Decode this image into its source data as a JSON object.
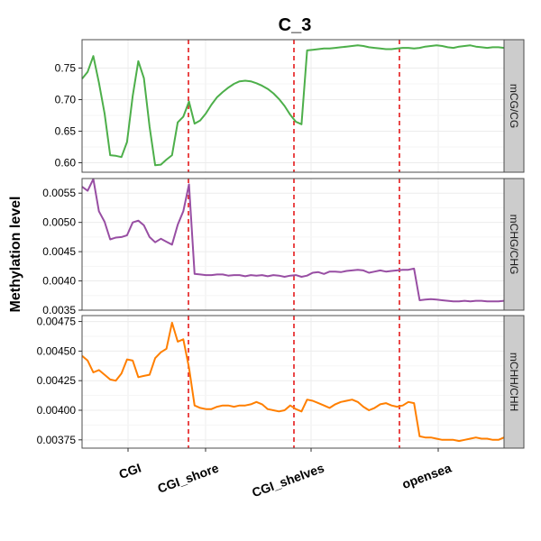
{
  "chart_data": {
    "type": "line",
    "title": "C_3",
    "ylabel": "Methylation level",
    "xlabel": "",
    "categories": [
      "CGI",
      "CGI_shore",
      "CGI_shelves",
      "opensea"
    ],
    "grid": true,
    "colors": {
      "panel_border": "#4d4d4d",
      "strip_fill": "#cccccc",
      "grid": "#ececec",
      "divider": "#e41a1c"
    },
    "panels": [
      {
        "strip": "mCG/CG",
        "color": "#4daf4a",
        "ylim": [
          0.585,
          0.795
        ],
        "yticks": [
          0.6,
          0.65,
          0.7,
          0.75
        ],
        "ytick_labels": [
          "0.60",
          "0.65",
          "0.70",
          "0.75"
        ],
        "values": [
          0.733,
          0.744,
          0.769,
          0.727,
          0.678,
          0.612,
          0.611,
          0.609,
          0.633,
          0.706,
          0.761,
          0.734,
          0.657,
          0.596,
          0.597,
          0.605,
          0.612,
          0.664,
          0.673,
          0.697,
          0.662,
          0.667,
          0.678,
          0.692,
          0.704,
          0.712,
          0.719,
          0.725,
          0.729,
          0.73,
          0.729,
          0.726,
          0.722,
          0.717,
          0.71,
          0.701,
          0.69,
          0.676,
          0.665,
          0.661,
          0.778,
          0.779,
          0.78,
          0.781,
          0.781,
          0.782,
          0.783,
          0.784,
          0.785,
          0.786,
          0.785,
          0.783,
          0.782,
          0.781,
          0.78,
          0.78,
          0.781,
          0.782,
          0.782,
          0.781,
          0.782,
          0.784,
          0.785,
          0.786,
          0.785,
          0.783,
          0.782,
          0.784,
          0.785,
          0.786,
          0.784,
          0.783,
          0.782,
          0.783,
          0.783,
          0.782
        ]
      },
      {
        "strip": "mCHG/CHG",
        "color": "#984ea3",
        "ylim": [
          0.0035,
          0.00575
        ],
        "yticks": [
          0.0035,
          0.004,
          0.0045,
          0.005,
          0.0055
        ],
        "ytick_labels": [
          "0.0035",
          "0.0040",
          "0.0045",
          "0.0050",
          "0.0055"
        ],
        "values": [
          0.00561,
          0.00554,
          0.00574,
          0.00519,
          0.00501,
          0.00471,
          0.00474,
          0.00475,
          0.00478,
          0.005,
          0.00503,
          0.00495,
          0.00475,
          0.00466,
          0.00472,
          0.00467,
          0.00462,
          0.00496,
          0.00519,
          0.00565,
          0.00412,
          0.00411,
          0.0041,
          0.0041,
          0.00411,
          0.00411,
          0.00409,
          0.0041,
          0.0041,
          0.00408,
          0.0041,
          0.00409,
          0.0041,
          0.00408,
          0.0041,
          0.00409,
          0.00407,
          0.00409,
          0.0041,
          0.00407,
          0.00409,
          0.00414,
          0.00415,
          0.00412,
          0.00416,
          0.00416,
          0.00415,
          0.00417,
          0.00418,
          0.00419,
          0.00418,
          0.00414,
          0.00416,
          0.00418,
          0.00416,
          0.00417,
          0.00418,
          0.00419,
          0.00419,
          0.00421,
          0.00367,
          0.00368,
          0.00369,
          0.00368,
          0.00367,
          0.00366,
          0.00365,
          0.00365,
          0.00366,
          0.00365,
          0.00366,
          0.00366,
          0.00365,
          0.00365,
          0.00365,
          0.00366
        ]
      },
      {
        "strip": "mCHH/CHH",
        "color": "#ff7f00",
        "ylim": [
          0.00368,
          0.0048
        ],
        "yticks": [
          0.00375,
          0.004,
          0.00425,
          0.0045,
          0.00475
        ],
        "ytick_labels": [
          "0.00375",
          "0.00400",
          "0.00425",
          "0.00450",
          "0.00475"
        ],
        "values": [
          0.00446,
          0.00442,
          0.00432,
          0.00434,
          0.0043,
          0.00426,
          0.00425,
          0.00431,
          0.00443,
          0.00442,
          0.00428,
          0.00429,
          0.0043,
          0.00444,
          0.00449,
          0.00452,
          0.00474,
          0.00458,
          0.0046,
          0.00436,
          0.00404,
          0.00402,
          0.00401,
          0.00401,
          0.00403,
          0.00404,
          0.00404,
          0.00403,
          0.00404,
          0.00404,
          0.00405,
          0.00407,
          0.00405,
          0.00401,
          0.004,
          0.00399,
          0.004,
          0.00404,
          0.00401,
          0.00399,
          0.00409,
          0.00408,
          0.00406,
          0.00404,
          0.00402,
          0.00405,
          0.00407,
          0.00408,
          0.00409,
          0.00407,
          0.00403,
          0.004,
          0.00402,
          0.00405,
          0.00406,
          0.00404,
          0.00403,
          0.00404,
          0.00407,
          0.00406,
          0.00378,
          0.00377,
          0.00377,
          0.00376,
          0.00375,
          0.00375,
          0.00375,
          0.00374,
          0.00375,
          0.00376,
          0.00377,
          0.00376,
          0.00376,
          0.00375,
          0.00375,
          0.00377
        ]
      }
    ]
  }
}
